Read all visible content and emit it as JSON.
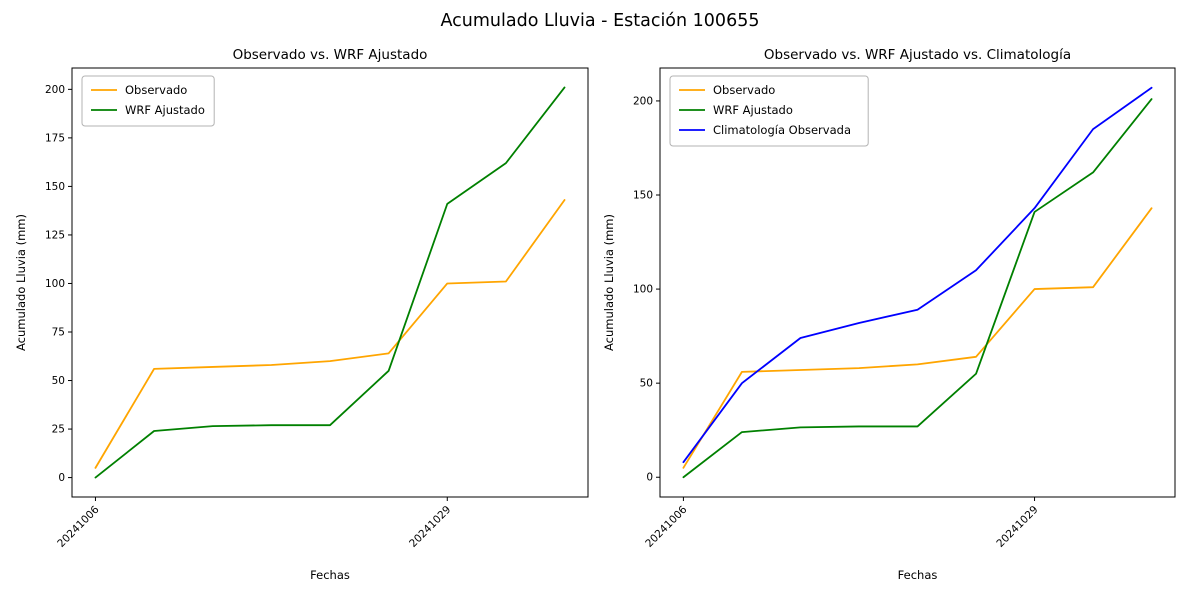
{
  "figure": {
    "suptitle": "Acumulado Lluvia - Estación 100655",
    "background": "#ffffff"
  },
  "chart_data": [
    {
      "type": "line",
      "title": "Observado vs. WRF Ajustado",
      "xlabel": "Fechas",
      "ylabel": "Acumulado Lluvia (mm)",
      "x": [
        0,
        1,
        2,
        3,
        4,
        5,
        6,
        7,
        8
      ],
      "xlim": [
        -0.4,
        8.4
      ],
      "ylim": [
        -10,
        211
      ],
      "yticks": [
        0,
        25,
        50,
        75,
        100,
        125,
        150,
        175,
        200
      ],
      "xtick_positions": [
        0,
        6
      ],
      "xtick_labels": [
        "20241006",
        "20241029"
      ],
      "grid": false,
      "legend_position": "upper-left",
      "series": [
        {
          "name": "Observado",
          "color": "#ffa500",
          "values": [
            5,
            56,
            57,
            58,
            60,
            64,
            100,
            101,
            143
          ]
        },
        {
          "name": "WRF Ajustado",
          "color": "#008000",
          "values": [
            0,
            24,
            26.5,
            27,
            27,
            55,
            141,
            162,
            201
          ]
        }
      ]
    },
    {
      "type": "line",
      "title": "Observado vs. WRF Ajustado vs. Climatología",
      "xlabel": "Fechas",
      "ylabel": "Acumulado Lluvia (mm)",
      "x": [
        0,
        1,
        2,
        3,
        4,
        5,
        6,
        7,
        8
      ],
      "xlim": [
        -0.4,
        8.4
      ],
      "ylim": [
        -10.5,
        217.5
      ],
      "yticks": [
        0,
        50,
        100,
        150,
        200
      ],
      "xtick_positions": [
        0,
        6
      ],
      "xtick_labels": [
        "20241006",
        "20241029"
      ],
      "grid": false,
      "legend_position": "upper-left",
      "series": [
        {
          "name": "Observado",
          "color": "#ffa500",
          "values": [
            5,
            56,
            57,
            58,
            60,
            64,
            100,
            101,
            143
          ]
        },
        {
          "name": "WRF Ajustado",
          "color": "#008000",
          "values": [
            0,
            24,
            26.5,
            27,
            27,
            55,
            141,
            162,
            201
          ]
        },
        {
          "name": "Climatología Observada",
          "color": "#0000ff",
          "values": [
            8,
            50,
            74,
            82,
            89,
            110,
            143,
            185,
            207
          ]
        }
      ]
    }
  ]
}
